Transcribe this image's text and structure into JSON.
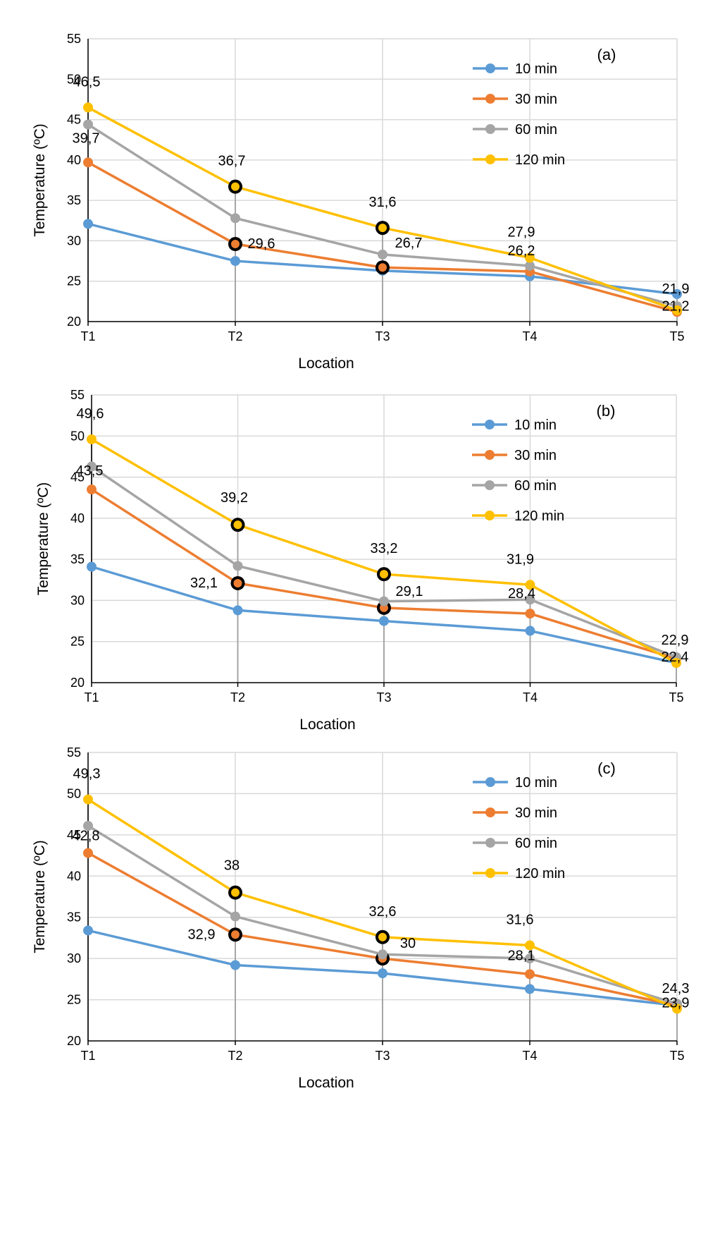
{
  "chart_data": [
    {
      "type": "line",
      "panel_label": "(a)",
      "xlabel": "Location",
      "ylabel": "Temperature (ºC)",
      "categories": [
        "T1",
        "T2",
        "T3",
        "T4",
        "T5"
      ],
      "ylim": [
        20,
        55
      ],
      "yticks": [
        20,
        25,
        30,
        35,
        40,
        45,
        50,
        55
      ],
      "grid": true,
      "legend": "top-right",
      "series": [
        {
          "name": "10 min",
          "values": [
            32.1,
            27.5,
            26.3,
            25.6,
            23.4
          ]
        },
        {
          "name": "30 min",
          "values": [
            39.7,
            29.6,
            26.7,
            26.2,
            21.2
          ]
        },
        {
          "name": "60 min",
          "values": [
            44.4,
            32.8,
            28.3,
            26.9,
            21.9
          ]
        },
        {
          "name": "120 min",
          "values": [
            46.5,
            36.7,
            31.6,
            27.9,
            21.4
          ]
        }
      ],
      "data_labels": [
        {
          "text": "46,5",
          "series": 3,
          "point": 0
        },
        {
          "text": "39,7",
          "series": 1,
          "point": 0
        },
        {
          "text": "36,7",
          "series": 3,
          "point": 1
        },
        {
          "text": "29,6",
          "series": 1,
          "point": 1
        },
        {
          "text": "31,6",
          "series": 3,
          "point": 2
        },
        {
          "text": "26,7",
          "series": 1,
          "point": 2
        },
        {
          "text": "27,9",
          "series": 3,
          "point": 3
        },
        {
          "text": "26,2",
          "series": 1,
          "point": 3
        },
        {
          "text": "21,9",
          "series": 2,
          "point": 4
        },
        {
          "text": "21,2",
          "series": 1,
          "point": 4
        }
      ],
      "highlighted_points": [
        {
          "series": 3,
          "point": 1
        },
        {
          "series": 1,
          "point": 1
        },
        {
          "series": 3,
          "point": 2
        },
        {
          "series": 1,
          "point": 2
        }
      ]
    },
    {
      "type": "line",
      "panel_label": "(b)",
      "xlabel": "Location",
      "ylabel": "Temperature (ºC)",
      "categories": [
        "T1",
        "T2",
        "T3",
        "T4",
        "T5"
      ],
      "ylim": [
        20,
        55
      ],
      "yticks": [
        20,
        25,
        30,
        35,
        40,
        45,
        50,
        55
      ],
      "grid": true,
      "legend": "top-right",
      "series": [
        {
          "name": "10 min",
          "values": [
            34.1,
            28.8,
            27.5,
            26.3,
            22.4
          ]
        },
        {
          "name": "30 min",
          "values": [
            43.5,
            32.1,
            29.1,
            28.4,
            22.9
          ]
        },
        {
          "name": "60 min",
          "values": [
            46.3,
            34.2,
            29.9,
            30.1,
            23.1
          ]
        },
        {
          "name": "120 min",
          "values": [
            49.6,
            39.2,
            33.2,
            31.9,
            22.4
          ]
        }
      ],
      "data_labels": [
        {
          "text": "49,6",
          "series": 3,
          "point": 0
        },
        {
          "text": "43,5",
          "series": 1,
          "point": 0
        },
        {
          "text": "39,2",
          "series": 3,
          "point": 1
        },
        {
          "text": "32,1",
          "series": 1,
          "point": 1
        },
        {
          "text": "33,2",
          "series": 3,
          "point": 2
        },
        {
          "text": "29,1",
          "series": 1,
          "point": 2
        },
        {
          "text": "31,9",
          "series": 3,
          "point": 3
        },
        {
          "text": "28,4",
          "series": 1,
          "point": 3
        },
        {
          "text": "22,9",
          "series": 1,
          "point": 4
        },
        {
          "text": "22,4",
          "series": 3,
          "point": 4
        }
      ],
      "highlighted_points": [
        {
          "series": 3,
          "point": 1
        },
        {
          "series": 1,
          "point": 1
        },
        {
          "series": 3,
          "point": 2
        },
        {
          "series": 1,
          "point": 2
        }
      ]
    },
    {
      "type": "line",
      "panel_label": "(c)",
      "xlabel": "Location",
      "ylabel": "Temperature (ºC)",
      "categories": [
        "T1",
        "T2",
        "T3",
        "T4",
        "T5"
      ],
      "ylim": [
        20,
        55
      ],
      "yticks": [
        20,
        25,
        30,
        35,
        40,
        45,
        50,
        55
      ],
      "grid": true,
      "legend": "top-right",
      "series": [
        {
          "name": "10 min",
          "values": [
            33.4,
            29.2,
            28.2,
            26.3,
            24.3
          ]
        },
        {
          "name": "30 min",
          "values": [
            42.8,
            32.9,
            30.0,
            28.1,
            24.3
          ]
        },
        {
          "name": "60 min",
          "values": [
            46.1,
            35.1,
            30.5,
            30.0,
            24.5
          ]
        },
        {
          "name": "120 min",
          "values": [
            49.3,
            38.0,
            32.6,
            31.6,
            23.9
          ]
        }
      ],
      "data_labels": [
        {
          "text": "49,3",
          "series": 3,
          "point": 0
        },
        {
          "text": "42,8",
          "series": 1,
          "point": 0
        },
        {
          "text": "38",
          "series": 3,
          "point": 1
        },
        {
          "text": "32,9",
          "series": 1,
          "point": 1
        },
        {
          "text": "32,6",
          "series": 3,
          "point": 2
        },
        {
          "text": "30",
          "series": 1,
          "point": 2
        },
        {
          "text": "31,6",
          "series": 3,
          "point": 3
        },
        {
          "text": "28,1",
          "series": 1,
          "point": 3
        },
        {
          "text": "24,3",
          "series": 1,
          "point": 4
        },
        {
          "text": "23,9",
          "series": 3,
          "point": 4
        }
      ],
      "highlighted_points": [
        {
          "series": 3,
          "point": 1
        },
        {
          "series": 1,
          "point": 1
        },
        {
          "series": 3,
          "point": 2
        },
        {
          "series": 1,
          "point": 2
        }
      ]
    }
  ],
  "colors": {
    "series": [
      "#5B9BD5",
      "#ED7D31",
      "#A5A5A5",
      "#FFC000"
    ],
    "grid": "#D9D9D9",
    "axis": "#000000",
    "highlight_ring": "#000000"
  }
}
